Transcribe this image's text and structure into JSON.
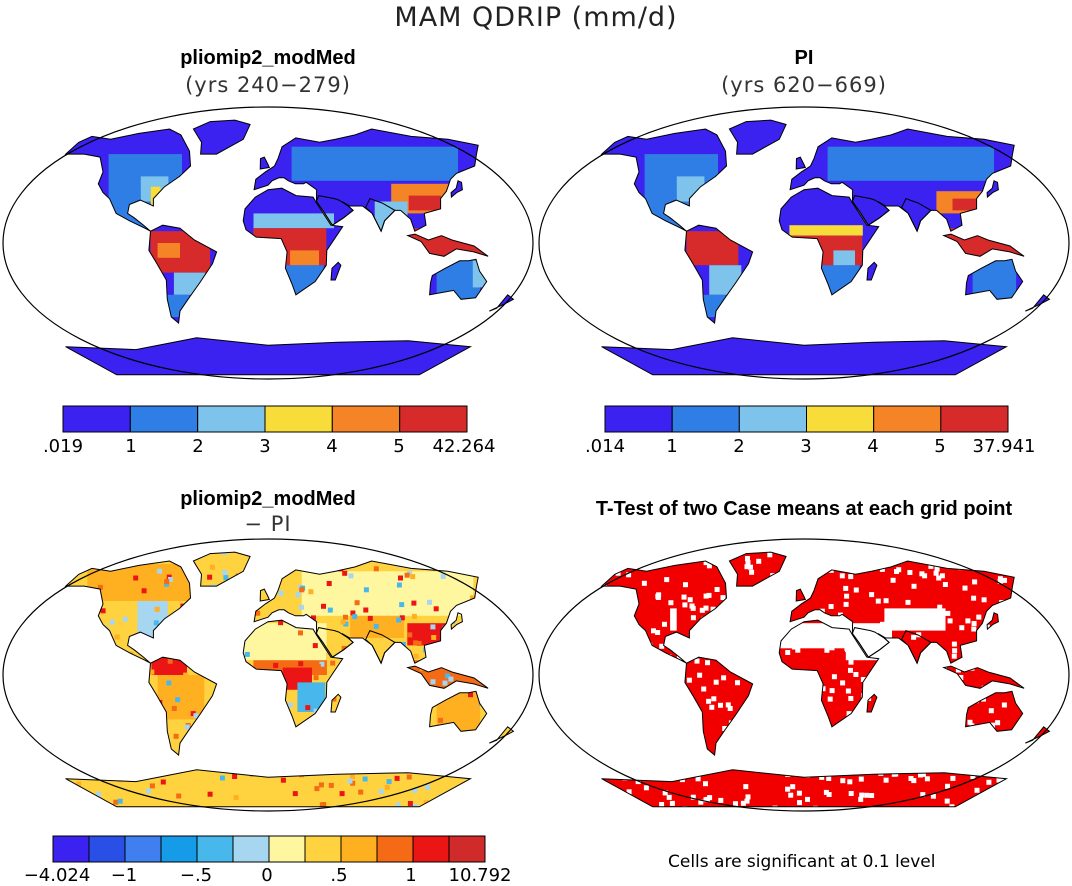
{
  "figure": {
    "title": "MAM QDRIP (mm/d)"
  },
  "panels": [
    {
      "title": "pliomip2_modMed",
      "subtitle": "(yrs 240−279)",
      "colorbar": {
        "labels": [
          ".019",
          "1",
          "2",
          "3",
          "4",
          "5",
          "42.264"
        ],
        "colors": [
          "#3b22f0",
          "#2f7ee6",
          "#7dc3ec",
          "#f7dc3a",
          "#f58426",
          "#d72b2b"
        ]
      }
    },
    {
      "title": "PI",
      "subtitle": "(yrs 620−669)",
      "colorbar": {
        "labels": [
          ".014",
          "1",
          "2",
          "3",
          "4",
          "5",
          "37.941"
        ],
        "colors": [
          "#3b22f0",
          "#2f7ee6",
          "#7dc3ec",
          "#f7dc3a",
          "#f58426",
          "#d72b2b"
        ]
      }
    },
    {
      "title": "pliomip2_modMed",
      "subtitle": "− PI",
      "colorbar": {
        "labels": [
          "−4.024",
          "−1",
          "−.5",
          "0",
          ".5",
          "1",
          "10.792"
        ],
        "colors": [
          "#3b22f0",
          "#2a4fe6",
          "#3f7ff0",
          "#169be8",
          "#48b8ec",
          "#a6d6f0",
          "#fff7a0",
          "#ffd23f",
          "#ffb020",
          "#f56a15",
          "#ec1515",
          "#d02a2a"
        ]
      }
    },
    {
      "title": "T-Test of two Case means at each grid point",
      "footnote": "Cells are significant at 0.1 level",
      "color": "#f20000"
    }
  ]
}
